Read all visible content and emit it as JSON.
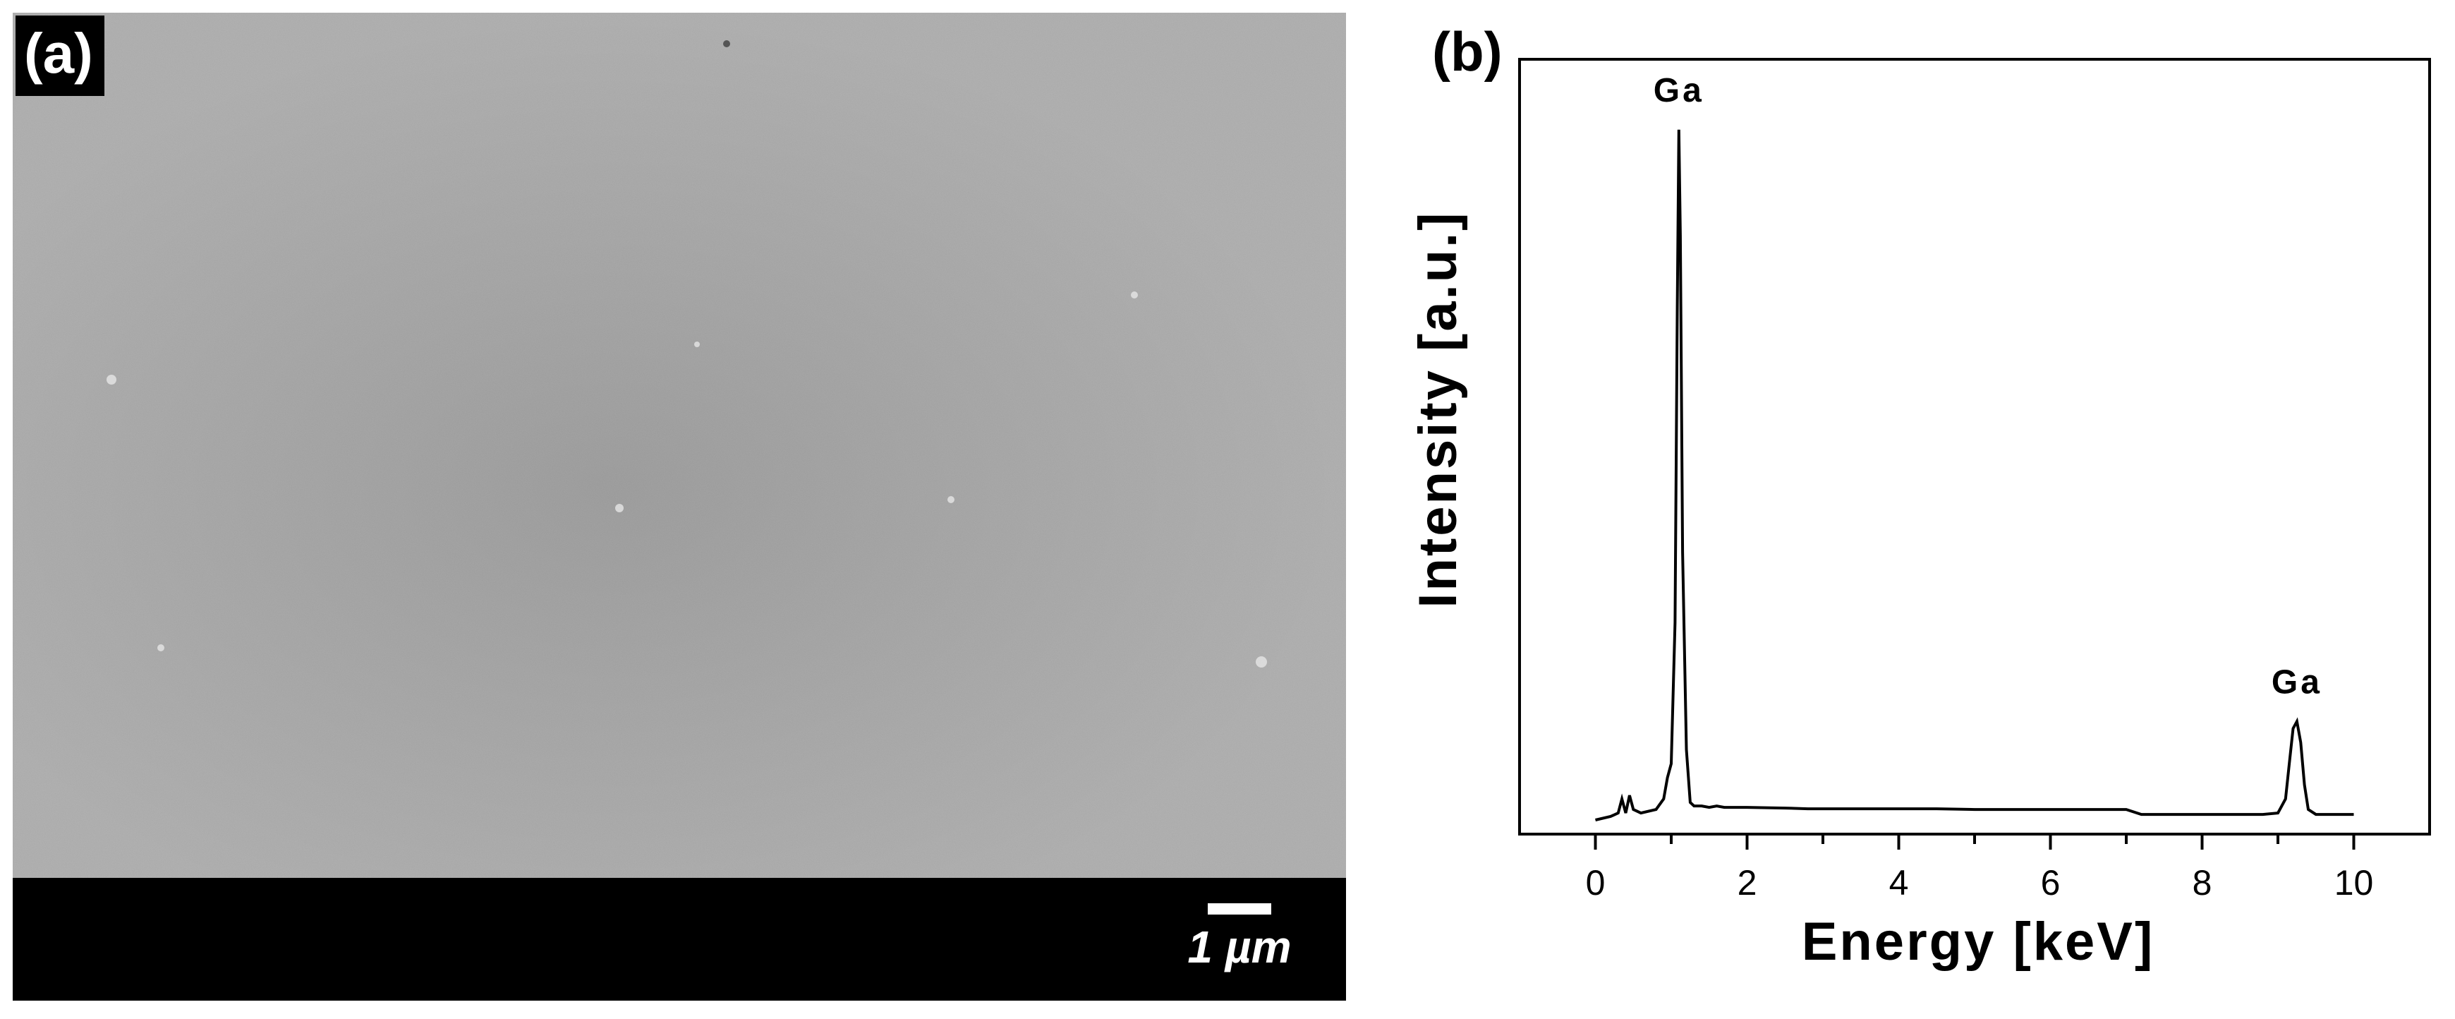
{
  "panel_a": {
    "label": "(a)",
    "scale_bar_label": "1 µm"
  },
  "panel_b": {
    "label": "(b)"
  },
  "chart_data": {
    "type": "line",
    "xlabel": "Energy [keV]",
    "ylabel": "Intensity [a.u.]",
    "xlim": [
      -1,
      11
    ],
    "ylim": [
      0,
      1.1
    ],
    "x_ticks": [
      0,
      2,
      4,
      6,
      8,
      10
    ],
    "y_ticks": [],
    "grid": false,
    "series": [
      {
        "x": [
          0.0,
          0.2,
          0.3,
          0.35,
          0.4,
          0.45,
          0.5,
          0.6,
          0.8,
          0.9,
          0.95,
          1.0,
          1.05,
          1.08,
          1.1,
          1.12,
          1.15,
          1.2,
          1.25,
          1.3,
          1.4,
          1.5,
          1.6,
          1.7,
          2.0,
          2.5,
          2.8,
          3.0,
          3.5,
          4.0,
          4.5,
          5.0,
          5.5,
          6.0,
          6.5,
          7.0,
          7.2,
          7.5,
          8.0,
          8.5,
          8.8,
          9.0,
          9.1,
          9.15,
          9.2,
          9.25,
          9.3,
          9.35,
          9.4,
          9.5,
          9.7,
          10.0
        ],
        "y": [
          0.02,
          0.025,
          0.03,
          0.05,
          0.03,
          0.055,
          0.035,
          0.03,
          0.035,
          0.05,
          0.08,
          0.1,
          0.3,
          0.75,
          1.0,
          0.85,
          0.4,
          0.12,
          0.045,
          0.04,
          0.04,
          0.038,
          0.04,
          0.038,
          0.038,
          0.037,
          0.036,
          0.036,
          0.036,
          0.036,
          0.036,
          0.035,
          0.035,
          0.035,
          0.035,
          0.035,
          0.028,
          0.028,
          0.028,
          0.028,
          0.028,
          0.03,
          0.05,
          0.1,
          0.15,
          0.16,
          0.13,
          0.07,
          0.035,
          0.028,
          0.028,
          0.028
        ]
      }
    ],
    "annotations": [
      {
        "text": "Ga",
        "x": 1.1,
        "y": 1.0
      },
      {
        "text": "Ga",
        "x": 9.25,
        "y": 0.16
      }
    ]
  }
}
